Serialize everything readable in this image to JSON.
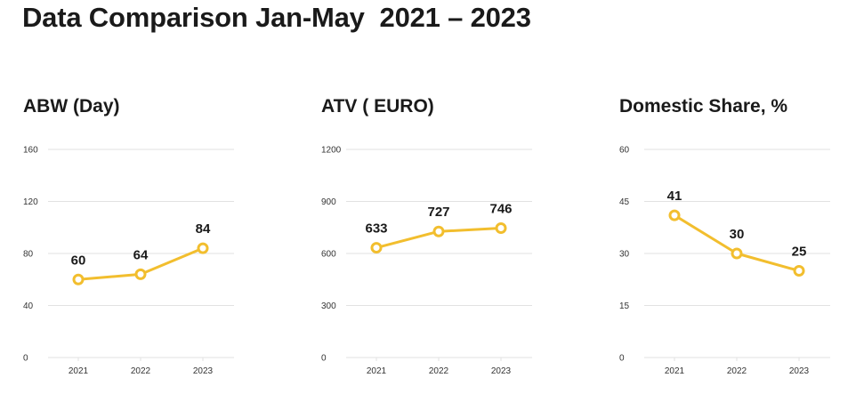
{
  "page_title": "Data Comparison Jan-May  2021 – 2023",
  "colors": {
    "line": "#f2be2e",
    "grid": "#e2e2e2",
    "text": "#1a1a1a"
  },
  "chart_data": [
    {
      "type": "line",
      "title": "ABW (Day)",
      "categories": [
        "2021",
        "2022",
        "2023"
      ],
      "values": [
        60,
        64,
        84
      ],
      "ylim": [
        0,
        160
      ],
      "yticks": [
        0,
        40,
        80,
        120,
        160
      ],
      "data_labels": [
        "60",
        "64",
        "84"
      ],
      "grid": true,
      "marker": "open-circle"
    },
    {
      "type": "line",
      "title": "ATV ( EURO)",
      "categories": [
        "2021",
        "2022",
        "2023"
      ],
      "values": [
        633,
        727,
        746
      ],
      "ylim": [
        0,
        1200
      ],
      "yticks": [
        0,
        300,
        600,
        900,
        1200
      ],
      "data_labels": [
        "633",
        "727",
        "746"
      ],
      "grid": true,
      "marker": "open-circle"
    },
    {
      "type": "line",
      "title": "Domestic Share, %",
      "categories": [
        "2021",
        "2022",
        "2023"
      ],
      "values": [
        41,
        30,
        25
      ],
      "ylim": [
        0,
        60
      ],
      "yticks": [
        0,
        15,
        30,
        45,
        60
      ],
      "data_labels": [
        "41",
        "30",
        "25"
      ],
      "grid": true,
      "marker": "open-circle"
    }
  ]
}
